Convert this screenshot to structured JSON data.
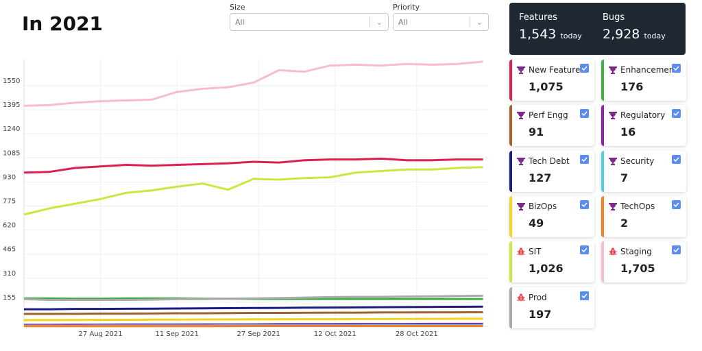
{
  "header": {
    "title": "In 2021"
  },
  "filters": [
    {
      "label": "Size",
      "value": "All"
    },
    {
      "label": "Priority",
      "value": "All"
    }
  ],
  "summary": [
    {
      "label": "Features",
      "value": "1,543",
      "suffix": "today"
    },
    {
      "label": "Bugs",
      "value": "2,928",
      "suffix": "today"
    }
  ],
  "chart_data": {
    "type": "line",
    "x": [
      "12 Aug 2021",
      "17 Aug 2021",
      "22 Aug 2021",
      "27 Aug 2021",
      "1 Sep 2021",
      "6 Sep 2021",
      "11 Sep 2021",
      "16 Sep 2021",
      "21 Sep 2021",
      "26 Sep 2021",
      "1 Oct 2021",
      "6 Oct 2021",
      "11 Oct 2021",
      "16 Oct 2021",
      "21 Oct 2021",
      "26 Oct 2021",
      "31 Oct 2021",
      "5 Nov 2021",
      "10 Nov 2021"
    ],
    "xlim": [
      "12 Aug 2021",
      "11 Nov 2021"
    ],
    "xticks": [
      "27 Aug 2021",
      "11 Sep 2021",
      "27 Sep 2021",
      "12 Oct 2021",
      "28 Oct 2021"
    ],
    "ylim": [
      0,
      1720
    ],
    "yticks": [
      155,
      310,
      465,
      620,
      775,
      930,
      1085,
      1240,
      1395,
      1550
    ],
    "grid": true,
    "series": [
      {
        "name": "New Feature",
        "total": "1,075",
        "kind": "feature",
        "checked": true,
        "color": "#dc1f4f",
        "values": [
          990,
          995,
          1020,
          1030,
          1040,
          1035,
          1040,
          1045,
          1050,
          1060,
          1055,
          1070,
          1075,
          1075,
          1080,
          1070,
          1070,
          1075,
          1075
        ]
      },
      {
        "name": "Enhancement",
        "total": "176",
        "kind": "feature",
        "checked": true,
        "color": "#3cb043",
        "values": [
          180,
          180,
          178,
          178,
          180,
          180,
          180,
          178,
          178,
          176,
          176,
          176,
          176,
          176,
          176,
          176,
          176,
          176,
          176
        ]
      },
      {
        "name": "Perf Engg",
        "total": "91",
        "kind": "feature",
        "checked": true,
        "color": "#a0622d",
        "values": [
          80,
          80,
          81,
          82,
          82,
          83,
          84,
          84,
          85,
          86,
          86,
          87,
          88,
          88,
          89,
          89,
          90,
          90,
          91
        ]
      },
      {
        "name": "Regulatory",
        "total": "16",
        "kind": "feature",
        "checked": true,
        "color": "#8e24aa",
        "values": [
          10,
          10,
          11,
          11,
          12,
          12,
          12,
          13,
          13,
          13,
          14,
          14,
          14,
          15,
          15,
          15,
          16,
          16,
          16
        ]
      },
      {
        "name": "Tech Debt",
        "total": "127",
        "kind": "feature",
        "checked": true,
        "color": "#1a1a80",
        "values": [
          110,
          110,
          112,
          112,
          113,
          114,
          115,
          116,
          117,
          118,
          119,
          120,
          121,
          122,
          123,
          124,
          125,
          126,
          127
        ]
      },
      {
        "name": "Security",
        "total": "7",
        "kind": "feature",
        "checked": true,
        "color": "#4dd0e1",
        "values": [
          4,
          4,
          4,
          5,
          5,
          5,
          5,
          5,
          6,
          6,
          6,
          6,
          6,
          6,
          7,
          7,
          7,
          7,
          7
        ]
      },
      {
        "name": "BizOps",
        "total": "49",
        "kind": "feature",
        "checked": true,
        "color": "#f5d31c",
        "values": [
          40,
          40,
          41,
          42,
          42,
          43,
          43,
          44,
          44,
          45,
          45,
          46,
          46,
          47,
          47,
          48,
          48,
          49,
          49
        ]
      },
      {
        "name": "TechOps",
        "total": "2",
        "kind": "feature",
        "checked": true,
        "color": "#f0812a",
        "values": [
          1,
          1,
          1,
          1,
          1,
          1,
          1,
          1,
          1,
          2,
          2,
          2,
          2,
          2,
          2,
          2,
          2,
          2,
          2
        ]
      },
      {
        "name": "SIT",
        "total": "1,026",
        "kind": "bug",
        "checked": true,
        "color": "#c5ea3f",
        "values": [
          720,
          760,
          790,
          820,
          860,
          875,
          900,
          920,
          880,
          950,
          945,
          955,
          960,
          990,
          1000,
          1010,
          1010,
          1020,
          1026
        ]
      },
      {
        "name": "Staging",
        "total": "1,705",
        "kind": "bug",
        "checked": true,
        "color": "#f8bbd0",
        "values": [
          1420,
          1425,
          1440,
          1450,
          1455,
          1460,
          1510,
          1530,
          1540,
          1570,
          1650,
          1640,
          1680,
          1685,
          1680,
          1690,
          1685,
          1690,
          1705
        ]
      },
      {
        "name": "Prod",
        "total": "197",
        "kind": "bug",
        "checked": true,
        "color": "#aaaaaa",
        "values": [
          175,
          170,
          170,
          170,
          170,
          172,
          175,
          175,
          178,
          180,
          182,
          185,
          188,
          190,
          190,
          192,
          193,
          195,
          197
        ]
      }
    ]
  }
}
